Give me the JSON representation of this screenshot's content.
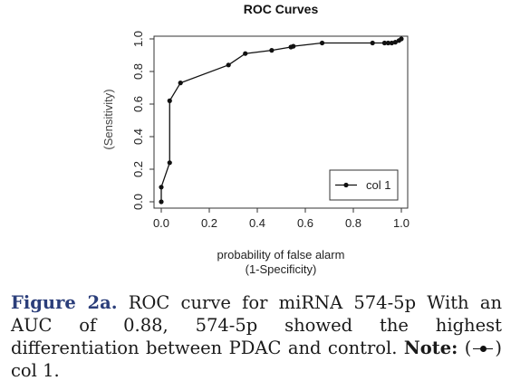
{
  "chart_data": {
    "type": "line",
    "title": "ROC Curves",
    "xlabel_line1": "probability of false alarm",
    "xlabel_line2": "(1-Specificity)",
    "ylabel": "(Sensitivity)",
    "xlim": [
      0,
      1
    ],
    "ylim": [
      0,
      1
    ],
    "xticks": [
      "0.0",
      "0.2",
      "0.4",
      "0.6",
      "0.8",
      "1.0"
    ],
    "yticks": [
      "0.0",
      "0.2",
      "0.4",
      "0.6",
      "0.8",
      "1.0"
    ],
    "grid": false,
    "legend_position": "bottom-right",
    "series": [
      {
        "name": "col 1",
        "color": "#111111",
        "x": [
          0.0,
          0.0,
          0.035,
          0.035,
          0.08,
          0.28,
          0.35,
          0.46,
          0.54,
          0.55,
          0.67,
          0.88,
          0.93,
          0.945,
          0.96,
          0.975,
          0.99,
          1.0
        ],
        "y": [
          0.0,
          0.09,
          0.24,
          0.62,
          0.73,
          0.84,
          0.91,
          0.93,
          0.95,
          0.955,
          0.975,
          0.975,
          0.975,
          0.975,
          0.975,
          0.98,
          0.99,
          1.0
        ]
      }
    ]
  },
  "caption": {
    "figure_label": "Figure 2a.",
    "text": " ROC curve for miRNA 574-5p With an AUC of 0.88, 574-5p showed the highest differentiation between PDAC and control. ",
    "note_label": "Note:",
    "note_open": " (",
    "note_close": ") col 1.",
    "legend_icon": "line-with-dot-icon"
  }
}
